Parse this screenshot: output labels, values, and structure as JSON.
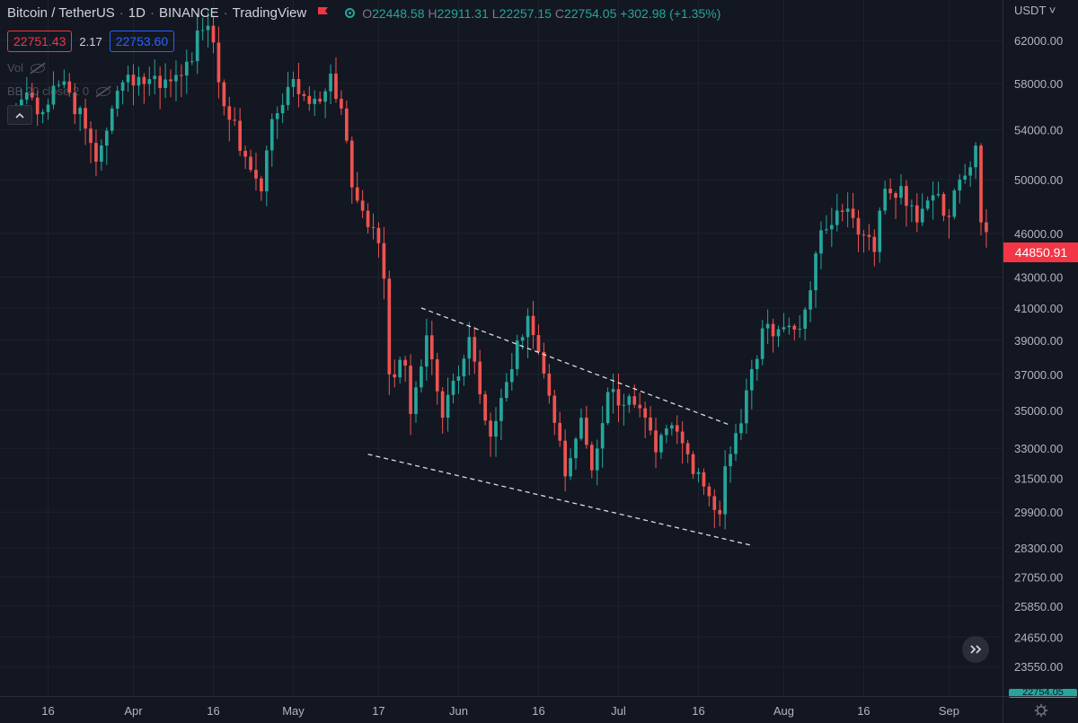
{
  "header": {
    "symbol": "Bitcoin / TetherUS",
    "interval": "1D",
    "exchange": "BINANCE",
    "platform": "TradingView",
    "open_label": "O",
    "open": "22448.58",
    "high_label": "H",
    "high": "22911.31",
    "low_label": "L",
    "low": "22257.15",
    "close_label": "C",
    "close": "22754.05",
    "change": "+302.98 (+1.35%)"
  },
  "compare": {
    "bid": "22751.43",
    "spread": "2.17",
    "ask": "22753.60"
  },
  "studies": {
    "volume": "Vol",
    "bollinger": "BB 20 close 2 0"
  },
  "price_scale": {
    "currency": "USDT",
    "last_price": "44850.91",
    "bottom_tag": "22754.05"
  },
  "colors": {
    "up": "#26a69a",
    "down": "#ef5350",
    "background": "#131722",
    "grid": "#1e222d",
    "trendline": "#ffffff"
  },
  "icons": {
    "flag": "flag-icon",
    "visibility": "eye-off-icon",
    "collapse": "chevron-up-icon",
    "scroll": "double-chevron-right-icon",
    "settings": "gear-icon"
  },
  "chart_data": {
    "type": "candlestick",
    "y_scale": "log",
    "ylim": [
      22500,
      66000
    ],
    "y_ticks": [
      "62000.00",
      "58000.00",
      "54000.00",
      "50000.00",
      "46000.00",
      "43000.00",
      "41000.00",
      "39000.00",
      "37000.00",
      "35000.00",
      "33000.00",
      "31500.00",
      "29900.00",
      "28300.00",
      "27050.00",
      "25850.00",
      "24650.00",
      "23550.00"
    ],
    "x_range": [
      "2021-03-09",
      "2021-09-07"
    ],
    "x_ticks": [
      {
        "label": "16",
        "date": "2021-03-16"
      },
      {
        "label": "Apr",
        "date": "2021-04-01"
      },
      {
        "label": "16",
        "date": "2021-04-16"
      },
      {
        "label": "May",
        "date": "2021-05-01"
      },
      {
        "label": "17",
        "date": "2021-05-17"
      },
      {
        "label": "Jun",
        "date": "2021-06-01"
      },
      {
        "label": "16",
        "date": "2021-06-16"
      },
      {
        "label": "Jul",
        "date": "2021-07-01"
      },
      {
        "label": "16",
        "date": "2021-07-16"
      },
      {
        "label": "Aug",
        "date": "2021-08-01"
      },
      {
        "label": "16",
        "date": "2021-08-16"
      },
      {
        "label": "Sep",
        "date": "2021-09-01"
      }
    ],
    "anchors": [
      {
        "date": "2021-03-10",
        "close": 56000
      },
      {
        "date": "2021-03-12",
        "close": 57200
      },
      {
        "date": "2021-03-15",
        "close": 55500
      },
      {
        "date": "2021-03-17",
        "close": 57800
      },
      {
        "date": "2021-03-19",
        "close": 58200
      },
      {
        "date": "2021-03-23",
        "close": 54100
      },
      {
        "date": "2021-03-25",
        "close": 51400
      },
      {
        "date": "2021-03-28",
        "close": 55800
      },
      {
        "date": "2021-03-31",
        "close": 58800
      },
      {
        "date": "2021-04-04",
        "close": 58400
      },
      {
        "date": "2021-04-08",
        "close": 58200
      },
      {
        "date": "2021-04-11",
        "close": 60000
      },
      {
        "date": "2021-04-14",
        "close": 63000
      },
      {
        "date": "2021-04-16",
        "close": 61800
      },
      {
        "date": "2021-04-18",
        "close": 56000
      },
      {
        "date": "2021-04-22",
        "close": 51800
      },
      {
        "date": "2021-04-25",
        "close": 49100
      },
      {
        "date": "2021-04-27",
        "close": 54900
      },
      {
        "date": "2021-04-30",
        "close": 57700
      },
      {
        "date": "2021-05-03",
        "close": 56900
      },
      {
        "date": "2021-05-06",
        "close": 56400
      },
      {
        "date": "2021-05-08",
        "close": 58900
      },
      {
        "date": "2021-05-10",
        "close": 55800
      },
      {
        "date": "2021-05-12",
        "close": 49400
      },
      {
        "date": "2021-05-16",
        "close": 46400
      },
      {
        "date": "2021-05-18",
        "close": 42900
      },
      {
        "date": "2021-05-19",
        "close": 37000
      },
      {
        "date": "2021-05-22",
        "close": 37500
      },
      {
        "date": "2021-05-23",
        "close": 34800
      },
      {
        "date": "2021-05-26",
        "close": 39300
      },
      {
        "date": "2021-05-29",
        "close": 34600
      },
      {
        "date": "2021-06-03",
        "close": 39200
      },
      {
        "date": "2021-06-07",
        "close": 33600
      },
      {
        "date": "2021-06-11",
        "close": 37300
      },
      {
        "date": "2021-06-14",
        "close": 40500
      },
      {
        "date": "2021-06-16",
        "close": 38300
      },
      {
        "date": "2021-06-18",
        "close": 35800
      },
      {
        "date": "2021-06-21",
        "close": 31600
      },
      {
        "date": "2021-06-22",
        "close": 32500
      },
      {
        "date": "2021-06-24",
        "close": 34600
      },
      {
        "date": "2021-06-26",
        "close": 31900
      },
      {
        "date": "2021-06-29",
        "close": 36000
      },
      {
        "date": "2021-07-04",
        "close": 35300
      },
      {
        "date": "2021-07-08",
        "close": 32800
      },
      {
        "date": "2021-07-11",
        "close": 34200
      },
      {
        "date": "2021-07-14",
        "close": 32700
      },
      {
        "date": "2021-07-16",
        "close": 31800
      },
      {
        "date": "2021-07-20",
        "close": 29800
      },
      {
        "date": "2021-07-21",
        "close": 32100
      },
      {
        "date": "2021-07-24",
        "close": 34300
      },
      {
        "date": "2021-07-26",
        "close": 37300
      },
      {
        "date": "2021-07-29",
        "close": 40000
      },
      {
        "date": "2021-08-01",
        "close": 39800
      },
      {
        "date": "2021-08-04",
        "close": 39700
      },
      {
        "date": "2021-08-05",
        "close": 40900
      },
      {
        "date": "2021-08-07",
        "close": 44600
      },
      {
        "date": "2021-08-09",
        "close": 46300
      },
      {
        "date": "2021-08-13",
        "close": 47800
      },
      {
        "date": "2021-08-16",
        "close": 45900
      },
      {
        "date": "2021-08-18",
        "close": 44700
      },
      {
        "date": "2021-08-20",
        "close": 49300
      },
      {
        "date": "2021-08-23",
        "close": 49500
      },
      {
        "date": "2021-08-26",
        "close": 46800
      },
      {
        "date": "2021-08-29",
        "close": 48800
      },
      {
        "date": "2021-09-01",
        "close": 47200
      },
      {
        "date": "2021-09-03",
        "close": 50000
      },
      {
        "date": "2021-09-06",
        "close": 52700
      },
      {
        "date": "2021-09-07",
        "close": 46800
      },
      {
        "date": "2021-09-08",
        "close": 46100
      }
    ],
    "trendlines": [
      {
        "name": "upper-trendline",
        "start": {
          "date": "2021-05-25",
          "price": 41000
        },
        "end": {
          "date": "2021-07-22",
          "price": 34200
        }
      },
      {
        "name": "lower-trendline",
        "start": {
          "date": "2021-05-15",
          "price": 32700
        },
        "end": {
          "date": "2021-07-26",
          "price": 28400
        }
      }
    ]
  }
}
